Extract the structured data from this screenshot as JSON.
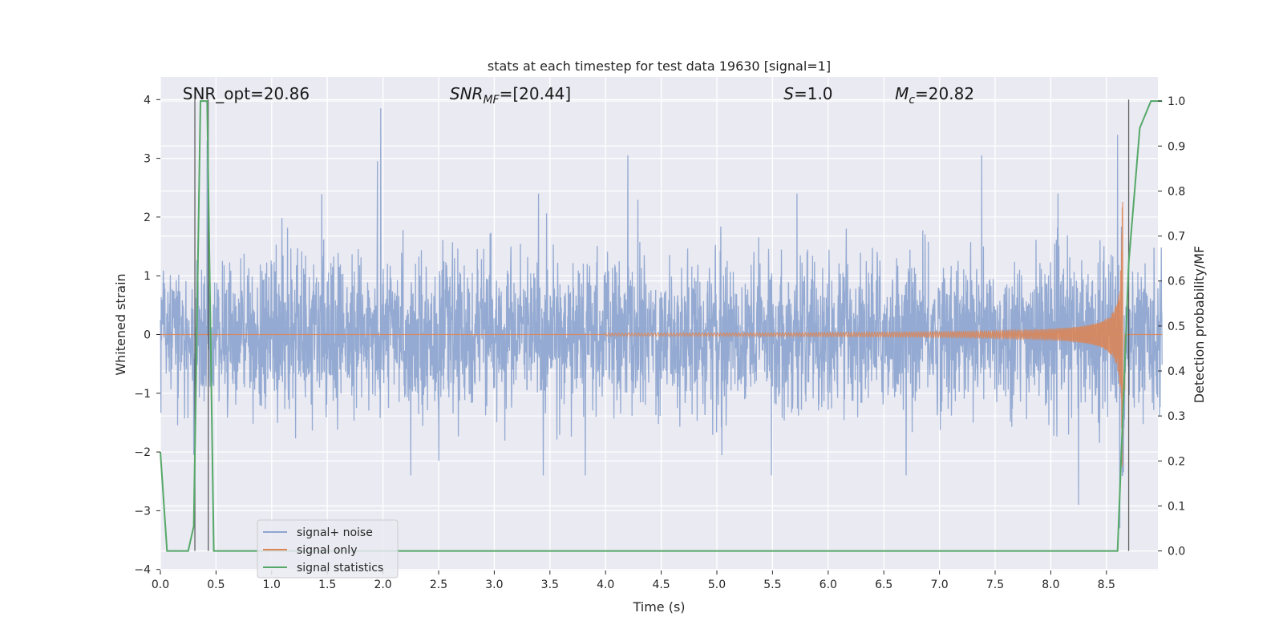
{
  "chart_data": {
    "type": "line",
    "title": "stats at each timestep for test data 19630 [signal=1]",
    "xlabel": "Time (s)",
    "ylabel": "Whitened strain",
    "y2label": "Detection probability/MF",
    "xlim": [
      0.0,
      9.0
    ],
    "ylim": [
      -4.1,
      4.4
    ],
    "y2lim": [
      -0.045,
      1.035
    ],
    "xticks": [
      0.0,
      0.5,
      1.0,
      1.5,
      2.0,
      2.5,
      3.0,
      3.5,
      4.0,
      4.5,
      5.0,
      5.5,
      6.0,
      6.5,
      7.0,
      7.5,
      8.0,
      8.5
    ],
    "xtick_labels": [
      "0.0",
      "0.5",
      "1.0",
      "1.5",
      "2.0",
      "2.5",
      "3.0",
      "3.5",
      "4.0",
      "4.5",
      "5.0",
      "5.5",
      "6.0",
      "6.5",
      "7.0",
      "7.5",
      "8.0",
      "8.5"
    ],
    "yticks": [
      -4,
      -3,
      -2,
      -1,
      0,
      1,
      2,
      3,
      4
    ],
    "ytick_labels": [
      "−4",
      "−3",
      "−2",
      "−1",
      "0",
      "1",
      "2",
      "3",
      "4"
    ],
    "y2ticks": [
      0.0,
      0.1,
      0.2,
      0.3,
      0.4,
      0.5,
      0.6,
      0.7,
      0.8,
      0.9,
      1.0
    ],
    "y2tick_labels": [
      "0.0",
      "0.1",
      "0.2",
      "0.3",
      "0.4",
      "0.5",
      "0.6",
      "0.7",
      "0.8",
      "0.9",
      "1.0"
    ],
    "grid": true,
    "legend_position": "lower-left",
    "series": [
      {
        "name": "signal+ noise",
        "color": "#8fa6d0",
        "axis": "left",
        "description": "whitened strain noise, amplitude ~N(0,0.6) with spikes up to ~3.9",
        "peaks": [
          [
            0.3,
            -2.05
          ],
          [
            0.42,
            3.3
          ],
          [
            1.98,
            3.85
          ],
          [
            1.95,
            2.95
          ],
          [
            4.2,
            3.05
          ],
          [
            7.38,
            3.05
          ],
          [
            8.25,
            -2.9
          ],
          [
            8.6,
            3.4
          ],
          [
            8.62,
            -3.3
          ]
        ]
      },
      {
        "name": "signal only",
        "color": "#dd8452",
        "axis": "left",
        "description": "chirp signal growing from t=4.0 s to merger at ~8.65 s",
        "chirp_start": 4.0,
        "merger_time": 8.65,
        "peak_amplitude": 3.3
      },
      {
        "name": "signal statistics",
        "color": "#55a868",
        "axis": "right",
        "x": [
          0.0,
          0.06,
          0.25,
          0.3,
          0.36,
          0.38,
          0.42,
          0.48,
          0.5,
          0.54,
          8.6,
          8.7,
          8.8,
          8.9,
          9.0
        ],
        "y": [
          0.22,
          0.0,
          0.0,
          0.055,
          1.0,
          1.0,
          1.0,
          0.0,
          0.0,
          0.0,
          0.0,
          0.64,
          0.94,
          1.0,
          1.0
        ]
      }
    ],
    "vlines": [
      0.31,
      0.43,
      8.7
    ],
    "annotations": [
      {
        "text": "SNR_opt=20.86",
        "x": 0.2
      },
      {
        "text": "SNR",
        "sub": "MF",
        "rest": "=[20.44]",
        "x": 2.6
      },
      {
        "text": "S",
        "rest": "=1.0",
        "x": 5.6
      },
      {
        "text": "M",
        "sub": "c",
        "rest": "=20.82",
        "x": 6.6
      }
    ]
  }
}
